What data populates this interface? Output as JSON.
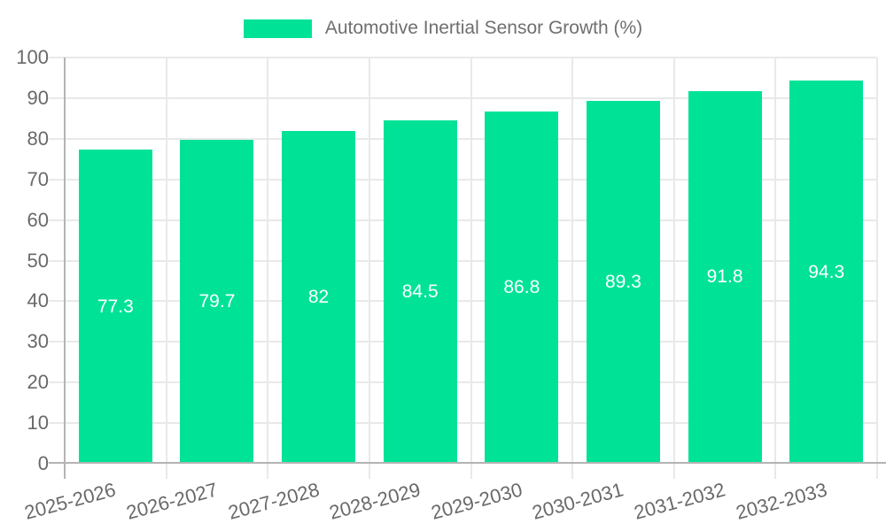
{
  "chart_data": {
    "type": "bar",
    "title": "Automotive Inertial Sensor Growth (%)",
    "categories": [
      "2025-2026",
      "2026-2027",
      "2027-2028",
      "2028-2029",
      "2029-2030",
      "2030-2031",
      "2031-2032",
      "2032-2033"
    ],
    "values": [
      77.3,
      79.7,
      82,
      84.5,
      86.8,
      89.3,
      91.8,
      94.3
    ],
    "value_labels": [
      "77.3",
      "79.7",
      "82",
      "84.5",
      "86.8",
      "89.3",
      "91.8",
      "94.3"
    ],
    "xlabel": "",
    "ylabel": "",
    "ylim": [
      0,
      100
    ],
    "y_ticks": [
      0,
      10,
      20,
      30,
      40,
      50,
      60,
      70,
      80,
      90,
      100
    ],
    "grid": true,
    "legend_position": "top",
    "x_label_rotation": -15
  },
  "colors": {
    "bar": "#00E396",
    "gridline": "#e9e9e9",
    "axis_line": "#b4b4b4",
    "axis_text": "#696969",
    "title_text": "#6f6f6f",
    "value_text": "#ffffff",
    "background": "#ffffff"
  }
}
